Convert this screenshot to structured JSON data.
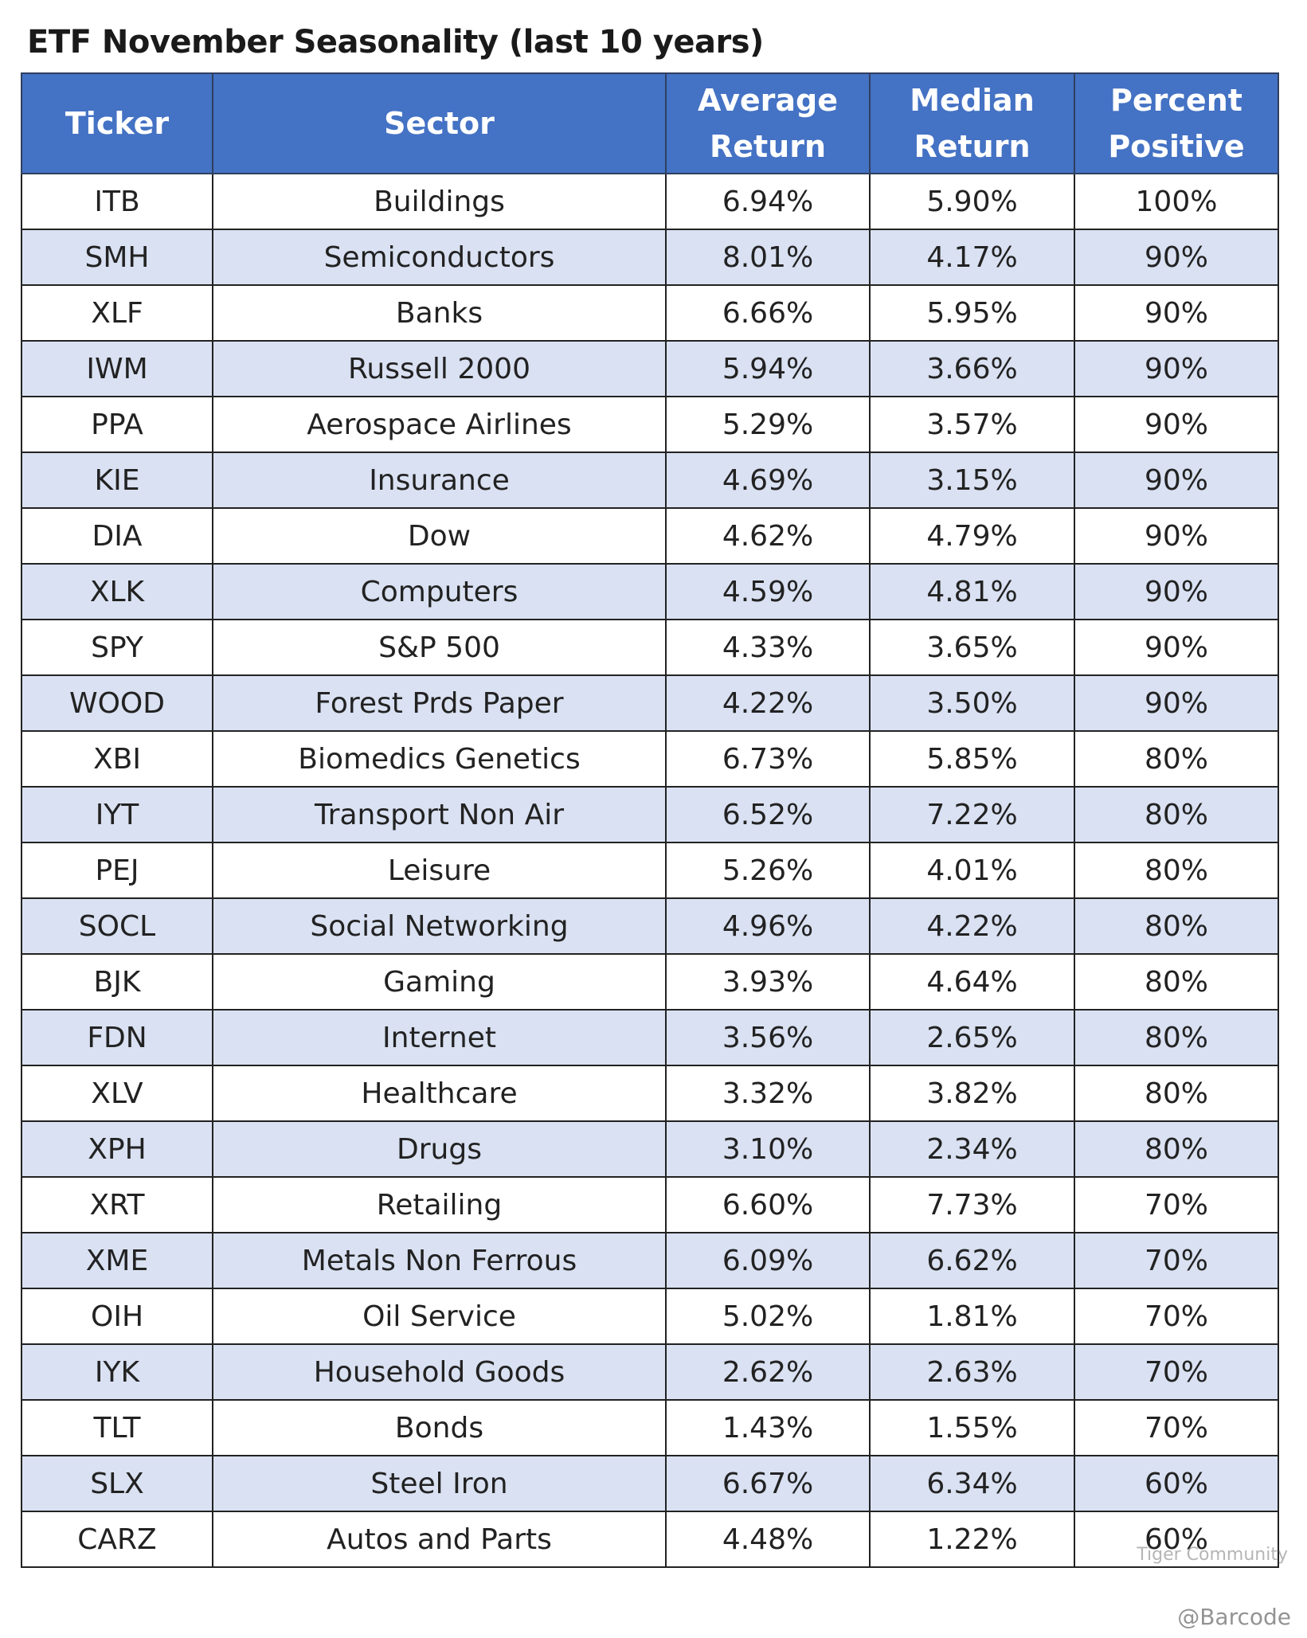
{
  "title": "ETF November Seasonality (last 10 years)",
  "table": {
    "headers": [
      "Ticker",
      "Sector",
      "Average Return",
      "Median Return",
      "Percent Positive"
    ],
    "rows": [
      [
        "ITB",
        "Buildings",
        "6.94%",
        "5.90%",
        "100%"
      ],
      [
        "SMH",
        "Semiconductors",
        "8.01%",
        "4.17%",
        "90%"
      ],
      [
        "XLF",
        "Banks",
        "6.66%",
        "5.95%",
        "90%"
      ],
      [
        "IWM",
        "Russell 2000",
        "5.94%",
        "3.66%",
        "90%"
      ],
      [
        "PPA",
        "Aerospace Airlines",
        "5.29%",
        "3.57%",
        "90%"
      ],
      [
        "KIE",
        "Insurance",
        "4.69%",
        "3.15%",
        "90%"
      ],
      [
        "DIA",
        "Dow",
        "4.62%",
        "4.79%",
        "90%"
      ],
      [
        "XLK",
        "Computers",
        "4.59%",
        "4.81%",
        "90%"
      ],
      [
        "SPY",
        "S&P 500",
        "4.33%",
        "3.65%",
        "90%"
      ],
      [
        "WOOD",
        "Forest Prds Paper",
        "4.22%",
        "3.50%",
        "90%"
      ],
      [
        "XBI",
        "Biomedics Genetics",
        "6.73%",
        "5.85%",
        "80%"
      ],
      [
        "IYT",
        "Transport Non Air",
        "6.52%",
        "7.22%",
        "80%"
      ],
      [
        "PEJ",
        "Leisure",
        "5.26%",
        "4.01%",
        "80%"
      ],
      [
        "SOCL",
        "Social Networking",
        "4.96%",
        "4.22%",
        "80%"
      ],
      [
        "BJK",
        "Gaming",
        "3.93%",
        "4.64%",
        "80%"
      ],
      [
        "FDN",
        "Internet",
        "3.56%",
        "2.65%",
        "80%"
      ],
      [
        "XLV",
        "Healthcare",
        "3.32%",
        "3.82%",
        "80%"
      ],
      [
        "XPH",
        "Drugs",
        "3.10%",
        "2.34%",
        "80%"
      ],
      [
        "XRT",
        "Retailing",
        "6.60%",
        "7.73%",
        "70%"
      ],
      [
        "XME",
        "Metals Non Ferrous",
        "6.09%",
        "6.62%",
        "70%"
      ],
      [
        "OIH",
        "Oil Service",
        "5.02%",
        "1.81%",
        "70%"
      ],
      [
        "IYK",
        "Household Goods",
        "2.62%",
        "2.63%",
        "70%"
      ],
      [
        "TLT",
        "Bonds",
        "1.43%",
        "1.55%",
        "70%"
      ],
      [
        "SLX",
        "Steel Iron",
        "6.67%",
        "6.34%",
        "60%"
      ],
      [
        "CARZ",
        "Autos and Parts",
        "4.48%",
        "1.22%",
        "60%"
      ]
    ]
  },
  "watermark": {
    "brand": "Tiger Community",
    "user": "@Barcode"
  }
}
